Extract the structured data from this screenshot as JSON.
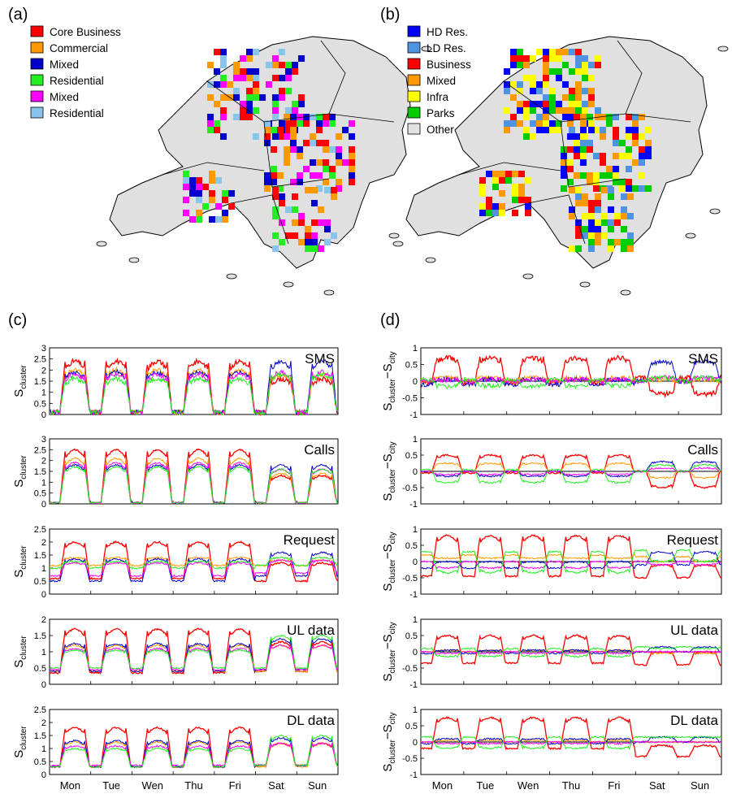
{
  "panels": {
    "a": "(a)",
    "b": "(b)",
    "c": "(c)",
    "d": "(d)"
  },
  "legend_a": [
    {
      "label": "Core Business",
      "color": "#ff0000"
    },
    {
      "label": "Commercial",
      "color": "#ff9900"
    },
    {
      "label": "Mixed",
      "color": "#0000cc"
    },
    {
      "label": "Residential",
      "color": "#22ee22"
    },
    {
      "label": "Mixed",
      "color": "#ff00ff"
    },
    {
      "label": "Residential",
      "color": "#88c4ee"
    }
  ],
  "legend_b": [
    {
      "label": "HD Res.",
      "color": "#0000ff"
    },
    {
      "label": "LD Res.",
      "color": "#4f94e0"
    },
    {
      "label": "Business",
      "color": "#ff0000"
    },
    {
      "label": "Mixed",
      "color": "#ff9900"
    },
    {
      "label": "Infra",
      "color": "#ffff00"
    },
    {
      "label": "Parks",
      "color": "#00cc00"
    },
    {
      "label": "Other",
      "color": "#e2e2e2"
    }
  ],
  "chart_data": [
    {
      "type": "line",
      "panel": "c",
      "metric": "SMS",
      "ylabel": "S",
      "ylabel_sub": "cluster",
      "ylim": [
        0,
        3
      ],
      "yticks": [
        "0",
        "0.5",
        "1",
        "1.5",
        "2",
        "2.5",
        "3"
      ],
      "x": [
        "Mon",
        "Tue",
        "Wen",
        "Thu",
        "Fri",
        "Sat",
        "Sun"
      ],
      "series": [
        {
          "color": "#ff0000",
          "weekday_peak": 2.4,
          "weekday_base": 0.1,
          "weekend_peak": 1.6,
          "weekend_base": 0.1
        },
        {
          "color": "#ff9900",
          "weekday_peak": 2.0,
          "weekday_base": 0.1,
          "weekend_peak": 1.8,
          "weekend_base": 0.1
        },
        {
          "color": "#0000cc",
          "weekday_peak": 1.9,
          "weekday_base": 0.1,
          "weekend_peak": 2.4,
          "weekend_base": 0.1
        },
        {
          "color": "#ff00ff",
          "weekday_peak": 1.8,
          "weekday_base": 0.1,
          "weekend_peak": 1.9,
          "weekend_base": 0.1
        },
        {
          "color": "#22ee22",
          "weekday_peak": 1.6,
          "weekday_base": 0.1,
          "weekend_peak": 1.8,
          "weekend_base": 0.1
        }
      ]
    },
    {
      "type": "line",
      "panel": "c",
      "metric": "Calls",
      "ylabel": "S",
      "ylabel_sub": "cluster",
      "ylim": [
        0,
        3
      ],
      "yticks": [
        "0",
        "0.5",
        "1",
        "1.5",
        "2",
        "2.5",
        "3"
      ],
      "x": [
        "Mon",
        "Tue",
        "Wen",
        "Thu",
        "Fri",
        "Sat",
        "Sun"
      ],
      "series": [
        {
          "color": "#ff0000",
          "weekday_peak": 2.5,
          "weekday_base": 0.05,
          "weekend_peak": 1.3,
          "weekend_base": 0.05
        },
        {
          "color": "#ff9900",
          "weekday_peak": 2.1,
          "weekday_base": 0.05,
          "weekend_peak": 1.4,
          "weekend_base": 0.05
        },
        {
          "color": "#0000cc",
          "weekday_peak": 1.8,
          "weekday_base": 0.05,
          "weekend_peak": 1.8,
          "weekend_base": 0.05
        },
        {
          "color": "#ff00ff",
          "weekday_peak": 1.9,
          "weekday_base": 0.05,
          "weekend_peak": 1.6,
          "weekend_base": 0.05
        },
        {
          "color": "#22ee22",
          "weekday_peak": 1.7,
          "weekday_base": 0.05,
          "weekend_peak": 1.6,
          "weekend_base": 0.05
        }
      ]
    },
    {
      "type": "line",
      "panel": "c",
      "metric": "Request",
      "ylabel": "S",
      "ylabel_sub": "cluster",
      "ylim": [
        0,
        2.5
      ],
      "yticks": [
        "0",
        "0.5",
        "1",
        "1.5",
        "2",
        "2.5"
      ],
      "x": [
        "Mon",
        "Tue",
        "Wen",
        "Thu",
        "Fri",
        "Sat",
        "Sun"
      ],
      "series": [
        {
          "color": "#ff0000",
          "weekday_peak": 2.0,
          "weekday_base": 0.6,
          "weekend_peak": 1.2,
          "weekend_base": 0.5
        },
        {
          "color": "#ff9900",
          "weekday_peak": 1.4,
          "weekday_base": 1.1,
          "weekend_peak": 1.3,
          "weekend_base": 1.1
        },
        {
          "color": "#0000cc",
          "weekday_peak": 1.35,
          "weekday_base": 0.5,
          "weekend_peak": 1.6,
          "weekend_base": 0.7
        },
        {
          "color": "#ff00ff",
          "weekday_peak": 1.2,
          "weekday_base": 0.7,
          "weekend_peak": 1.3,
          "weekend_base": 0.8
        },
        {
          "color": "#22ee22",
          "weekday_peak": 1.25,
          "weekday_base": 1.0,
          "weekend_peak": 1.4,
          "weekend_base": 1.1
        }
      ]
    },
    {
      "type": "line",
      "panel": "c",
      "metric": "UL data",
      "ylabel": "S",
      "ylabel_sub": "cluster",
      "ylim": [
        0,
        2
      ],
      "yticks": [
        "0",
        "0.5",
        "1",
        "1.5",
        "2"
      ],
      "x": [
        "Mon",
        "Tue",
        "Wen",
        "Thu",
        "Fri",
        "Sat",
        "Sun"
      ],
      "series": [
        {
          "color": "#ff0000",
          "weekday_peak": 1.7,
          "weekday_base": 0.35,
          "weekend_peak": 1.3,
          "weekend_base": 0.4
        },
        {
          "color": "#ff9900",
          "weekday_peak": 1.2,
          "weekday_base": 0.4,
          "weekend_peak": 1.2,
          "weekend_base": 0.4
        },
        {
          "color": "#0000cc",
          "weekday_peak": 1.25,
          "weekday_base": 0.4,
          "weekend_peak": 1.4,
          "weekend_base": 0.45
        },
        {
          "color": "#ff00ff",
          "weekday_peak": 1.1,
          "weekday_base": 0.45,
          "weekend_peak": 1.2,
          "weekend_base": 0.45
        },
        {
          "color": "#22ee22",
          "weekday_peak": 1.05,
          "weekday_base": 0.5,
          "weekend_peak": 1.5,
          "weekend_base": 0.5
        }
      ]
    },
    {
      "type": "line",
      "panel": "c",
      "metric": "DL data",
      "ylabel": "S",
      "ylabel_sub": "cluster",
      "ylim": [
        0,
        2.5
      ],
      "yticks": [
        "0",
        "0.5",
        "1",
        "1.5",
        "2",
        "2.5"
      ],
      "x": [
        "Mon",
        "Tue",
        "Wen",
        "Thu",
        "Fri",
        "Sat",
        "Sun"
      ],
      "series": [
        {
          "color": "#ff0000",
          "weekday_peak": 1.8,
          "weekday_base": 0.3,
          "weekend_peak": 1.2,
          "weekend_base": 0.35
        },
        {
          "color": "#ff9900",
          "weekday_peak": 1.25,
          "weekday_base": 0.3,
          "weekend_peak": 1.2,
          "weekend_base": 0.3
        },
        {
          "color": "#0000cc",
          "weekday_peak": 1.3,
          "weekday_base": 0.3,
          "weekend_peak": 1.4,
          "weekend_base": 0.35
        },
        {
          "color": "#ff00ff",
          "weekday_peak": 1.1,
          "weekday_base": 0.35,
          "weekend_peak": 1.2,
          "weekend_base": 0.35
        },
        {
          "color": "#22ee22",
          "weekday_peak": 1.0,
          "weekday_base": 0.3,
          "weekend_peak": 1.5,
          "weekend_base": 0.35
        }
      ]
    },
    {
      "type": "line",
      "panel": "d",
      "metric": "SMS",
      "ylabel": "S",
      "ylabel_sub": "cluster",
      "ylabel_tail": "−S",
      "ylabel_tail_sub": "city",
      "ylim": [
        -1,
        1
      ],
      "yticks": [
        "-1",
        "-0.5",
        "0",
        "0.5",
        "1"
      ],
      "x": [
        "Mon",
        "Tue",
        "Wen",
        "Thu",
        "Fri",
        "Sat",
        "Sun"
      ],
      "series": [
        {
          "color": "#ff0000",
          "weekday_peak": 0.7,
          "weekday_base": -0.05,
          "weekend_peak": -0.4,
          "weekend_base": 0.1
        },
        {
          "color": "#ff9900",
          "weekday_peak": 0.1,
          "weekday_base": 0.0,
          "weekend_peak": 0.05,
          "weekend_base": 0.0
        },
        {
          "color": "#0000cc",
          "weekday_peak": 0.05,
          "weekday_base": -0.1,
          "weekend_peak": 0.6,
          "weekend_base": 0.0
        },
        {
          "color": "#ff00ff",
          "weekday_peak": 0.05,
          "weekday_base": 0.0,
          "weekend_peak": 0.1,
          "weekend_base": 0.0
        },
        {
          "color": "#22ee22",
          "weekday_peak": -0.15,
          "weekday_base": 0.05,
          "weekend_peak": 0.1,
          "weekend_base": 0.0
        }
      ]
    },
    {
      "type": "line",
      "panel": "d",
      "metric": "Calls",
      "ylabel": "S",
      "ylabel_sub": "cluster",
      "ylabel_tail": "−S",
      "ylabel_tail_sub": "city",
      "ylim": [
        -1,
        1
      ],
      "yticks": [
        "-1",
        "-0.5",
        "0",
        "0.5",
        "1"
      ],
      "x": [
        "Mon",
        "Tue",
        "Wen",
        "Thu",
        "Fri",
        "Sat",
        "Sun"
      ],
      "series": [
        {
          "color": "#ff0000",
          "weekday_peak": 0.5,
          "weekday_base": -0.05,
          "weekend_peak": -0.5,
          "weekend_base": 0.0
        },
        {
          "color": "#ff9900",
          "weekday_peak": 0.25,
          "weekday_base": 0.0,
          "weekend_peak": -0.2,
          "weekend_base": 0.0
        },
        {
          "color": "#0000cc",
          "weekday_peak": -0.15,
          "weekday_base": 0.0,
          "weekend_peak": 0.3,
          "weekend_base": 0.0
        },
        {
          "color": "#ff00ff",
          "weekday_peak": -0.1,
          "weekday_base": 0.0,
          "weekend_peak": 0.1,
          "weekend_base": 0.0
        },
        {
          "color": "#22ee22",
          "weekday_peak": -0.35,
          "weekday_base": 0.05,
          "weekend_peak": 0.2,
          "weekend_base": 0.0
        }
      ]
    },
    {
      "type": "line",
      "panel": "d",
      "metric": "Request",
      "ylabel": "S",
      "ylabel_sub": "cluster",
      "ylabel_tail": "−S",
      "ylabel_tail_sub": "city",
      "ylim": [
        -1,
        1
      ],
      "yticks": [
        "-1",
        "-0.5",
        "0",
        "0.5",
        "1"
      ],
      "x": [
        "Mon",
        "Tue",
        "Wen",
        "Thu",
        "Fri",
        "Sat",
        "Sun"
      ],
      "series": [
        {
          "color": "#ff0000",
          "weekday_peak": 0.8,
          "weekday_base": -0.45,
          "weekend_peak": -0.1,
          "weekend_base": -0.5
        },
        {
          "color": "#ff9900",
          "weekday_peak": 0.1,
          "weekday_base": 0.2,
          "weekend_peak": 0.0,
          "weekend_base": 0.15
        },
        {
          "color": "#0000cc",
          "weekday_peak": 0.0,
          "weekday_base": -0.2,
          "weekend_peak": 0.3,
          "weekend_base": -0.1
        },
        {
          "color": "#ff00ff",
          "weekday_peak": -0.2,
          "weekday_base": 0.0,
          "weekend_peak": -0.1,
          "weekend_base": 0.0
        },
        {
          "color": "#22ee22",
          "weekday_peak": -0.35,
          "weekday_base": 0.3,
          "weekend_peak": 0.0,
          "weekend_base": 0.35
        }
      ]
    },
    {
      "type": "line",
      "panel": "d",
      "metric": "UL data",
      "ylabel": "S",
      "ylabel_sub": "cluster",
      "ylabel_tail": "−S",
      "ylabel_tail_sub": "city",
      "ylim": [
        -1,
        1
      ],
      "yticks": [
        "-1",
        "-0.5",
        "0",
        "0.5",
        "1"
      ],
      "x": [
        "Mon",
        "Tue",
        "Wen",
        "Thu",
        "Fri",
        "Sat",
        "Sun"
      ],
      "series": [
        {
          "color": "#ff0000",
          "weekday_peak": 0.5,
          "weekday_base": -0.35,
          "weekend_peak": 0.0,
          "weekend_base": -0.4
        },
        {
          "color": "#ff9900",
          "weekday_peak": 0.05,
          "weekday_base": 0.0,
          "weekend_peak": -0.05,
          "weekend_base": 0.0
        },
        {
          "color": "#0000cc",
          "weekday_peak": 0.05,
          "weekday_base": -0.05,
          "weekend_peak": 0.15,
          "weekend_base": 0.0
        },
        {
          "color": "#ff00ff",
          "weekday_peak": -0.05,
          "weekday_base": 0.0,
          "weekend_peak": 0.0,
          "weekend_base": 0.0
        },
        {
          "color": "#22ee22",
          "weekday_peak": -0.15,
          "weekday_base": 0.1,
          "weekend_peak": 0.1,
          "weekend_base": 0.15
        }
      ]
    },
    {
      "type": "line",
      "panel": "d",
      "metric": "DL data",
      "ylabel": "S",
      "ylabel_sub": "cluster",
      "ylabel_tail": "−S",
      "ylabel_tail_sub": "city",
      "ylim": [
        -1,
        1
      ],
      "yticks": [
        "-1",
        "-0.5",
        "0",
        "0.5",
        "1"
      ],
      "x": [
        "Mon",
        "Tue",
        "Wen",
        "Thu",
        "Fri",
        "Sat",
        "Sun"
      ],
      "series": [
        {
          "color": "#ff0000",
          "weekday_peak": 0.75,
          "weekday_base": -0.2,
          "weekend_peak": -0.1,
          "weekend_base": -0.45
        },
        {
          "color": "#ff9900",
          "weekday_peak": 0.05,
          "weekday_base": 0.0,
          "weekend_peak": 0.0,
          "weekend_base": 0.0
        },
        {
          "color": "#0000cc",
          "weekday_peak": 0.1,
          "weekday_base": -0.05,
          "weekend_peak": 0.15,
          "weekend_base": 0.0
        },
        {
          "color": "#ff00ff",
          "weekday_peak": -0.05,
          "weekday_base": 0.0,
          "weekend_peak": 0.0,
          "weekend_base": 0.0
        },
        {
          "color": "#22ee22",
          "weekday_peak": -0.2,
          "weekday_base": 0.15,
          "weekend_peak": 0.15,
          "weekend_base": 0.15
        }
      ]
    }
  ]
}
